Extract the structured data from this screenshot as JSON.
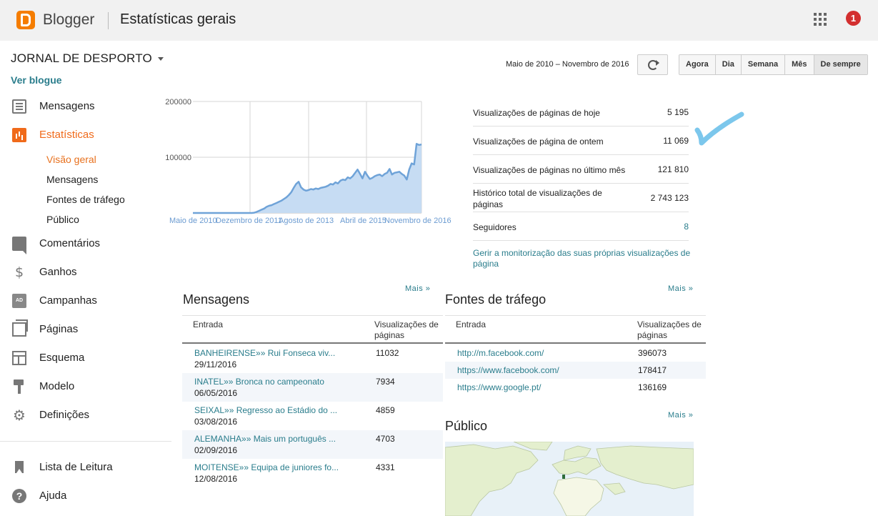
{
  "header": {
    "brand": "Blogger",
    "page_title": "Estatísticas gerais",
    "notifications": "1"
  },
  "sidebar": {
    "blog_name": "JORNAL DE DESPORTO",
    "view_blog": "Ver blogue",
    "items": [
      {
        "label": "Mensagens",
        "icon": "posts-icon"
      },
      {
        "label": "Estatísticas",
        "icon": "stats-icon"
      },
      {
        "label": "Comentários",
        "icon": "comments-icon"
      },
      {
        "label": "Ganhos",
        "icon": "earnings-icon"
      },
      {
        "label": "Campanhas",
        "icon": "campaigns-icon"
      },
      {
        "label": "Páginas",
        "icon": "pages-icon"
      },
      {
        "label": "Esquema",
        "icon": "layout-icon"
      },
      {
        "label": "Modelo",
        "icon": "theme-icon"
      },
      {
        "label": "Definições",
        "icon": "settings-icon"
      }
    ],
    "sub_items": [
      "Visão geral",
      "Mensagens",
      "Fontes de tráfego",
      "Público"
    ],
    "footer_items": [
      {
        "label": "Lista de Leitura",
        "icon": "reading-list-icon"
      },
      {
        "label": "Ajuda",
        "icon": "help-icon"
      }
    ]
  },
  "toolbar": {
    "date_range": "Maio de 2010 – Novembro de 2016",
    "ranges": [
      "Agora",
      "Dia",
      "Semana",
      "Mês",
      "De sempre"
    ],
    "active_range": "De sempre"
  },
  "chart_data": {
    "type": "area",
    "y_ticks": [
      "200000",
      "100000"
    ],
    "ylim": [
      0,
      200000
    ],
    "x_labels": [
      "Maio de 2010",
      "Dezembro de 2011",
      "Agosto de 2013",
      "Abril de 2015",
      "Novembro de 2016"
    ],
    "values": [
      0,
      0,
      0,
      0,
      0,
      0,
      0,
      0,
      0,
      0,
      0,
      0,
      0,
      0,
      0,
      0,
      0,
      0,
      0,
      0,
      0,
      0,
      0,
      0,
      0,
      500,
      2000,
      4000,
      6000,
      8000,
      11000,
      13000,
      14000,
      16000,
      18000,
      20000,
      22000,
      25000,
      28000,
      32000,
      37000,
      45000,
      52000,
      56000,
      46000,
      42000,
      40000,
      41000,
      43000,
      42000,
      44000,
      43000,
      45000,
      46000,
      47000,
      49000,
      52000,
      51000,
      55000,
      53000,
      58000,
      60000,
      59000,
      64000,
      62000,
      66000,
      72000,
      78000,
      70000,
      62000,
      74000,
      67000,
      61000,
      63000,
      66000,
      68000,
      69000,
      66000,
      70000,
      72000,
      79000,
      69000,
      72000,
      73000,
      74000,
      70000,
      67000,
      60000,
      78000,
      89000,
      87000,
      124000,
      122000,
      123000
    ]
  },
  "stats": [
    {
      "label": "Visualizações de páginas de hoje",
      "value": "5 195"
    },
    {
      "label": "Visualizações de página de ontem",
      "value": "11 069"
    },
    {
      "label": "Visualizações de páginas no último mês",
      "value": "121 810"
    },
    {
      "label": "Histórico total de visualizações de páginas",
      "value": "2 743 123"
    },
    {
      "label": "Seguidores",
      "value": "8"
    }
  ],
  "manage_link": "Gerir a monitorização das suas próprias visualizações de página",
  "posts_panel": {
    "title": "Mensagens",
    "more": "Mais »",
    "col_entry": "Entrada",
    "col_views": "Visualizações de páginas",
    "rows": [
      {
        "title": "BANHEIRENSE»» Rui Fonseca viv...",
        "date": "29/11/2016",
        "views": "11032"
      },
      {
        "title": "INATEL»» Bronca no campeonato",
        "date": "06/05/2016",
        "views": "7934"
      },
      {
        "title": "SEIXAL»» Regresso ao Estádio do ...",
        "date": "03/08/2016",
        "views": "4859"
      },
      {
        "title": "ALEMANHA»» Mais um português ...",
        "date": "02/09/2016",
        "views": "4703"
      },
      {
        "title": "MOITENSE»» Equipa de juniores fo...",
        "date": "12/08/2016",
        "views": "4331"
      }
    ]
  },
  "traffic_panel": {
    "title": "Fontes de tráfego",
    "more": "Mais »",
    "col_entry": "Entrada",
    "col_views": "Visualizações de páginas",
    "rows": [
      {
        "source": "http://m.facebook.com/",
        "views": "396073"
      },
      {
        "source": "https://www.facebook.com/",
        "views": "178417"
      },
      {
        "source": "https://www.google.pt/",
        "views": "136169"
      }
    ]
  },
  "audience_panel": {
    "title": "Público",
    "more": "Mais »"
  },
  "colors": {
    "accent": "#f06a1a",
    "link": "#2a7d8c",
    "chart_line": "#6fa3d8",
    "chart_fill": "#c6dcf3",
    "check_mark": "#7cc7ec"
  }
}
